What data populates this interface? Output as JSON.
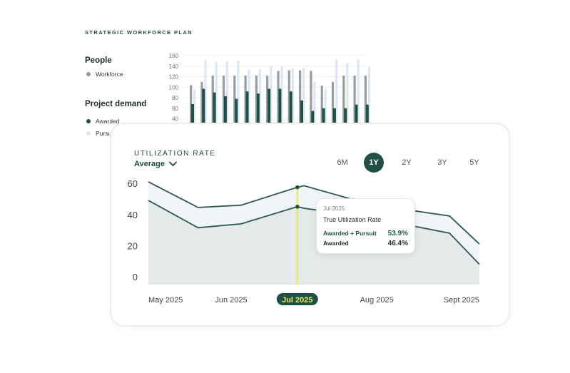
{
  "plan_label": "STRATEGIC WORKFORCE PLAN",
  "people": {
    "heading": "People",
    "legend": [
      {
        "label": "Workforce",
        "color": "#9a9c9b"
      }
    ]
  },
  "demand": {
    "heading": "Project demand",
    "legend": [
      {
        "label": "Awarded",
        "color": "#1f4f45"
      },
      {
        "label": "Pursuit",
        "color": "#e3e5e4"
      }
    ]
  },
  "colors": {
    "workforce": "#9a9c9b",
    "awarded": "#1f4f45",
    "pursuit": "#dde7f2",
    "accent": "#1f4f45",
    "highlight": "#e7ef55"
  },
  "utilization": {
    "title": "UTILIZATION RATE",
    "selector": "Average",
    "ranges": [
      "6M",
      "1Y",
      "2Y",
      "3Y",
      "5Y"
    ],
    "active_range": "1Y",
    "tooltip": {
      "date": "Jul 2025",
      "title": "True Utilization Rate",
      "rows": [
        {
          "label": "Awarded + Pursuit",
          "value": "53.9%"
        },
        {
          "label": "Awarded",
          "value": "46.4%"
        }
      ]
    }
  },
  "chart_data": [
    {
      "type": "bar",
      "title": "",
      "xlabel": "",
      "ylabel": "",
      "y_ticks": [
        40,
        60,
        80,
        100,
        120,
        140,
        160
      ],
      "ylim": [
        30,
        160
      ],
      "series": [
        {
          "name": "Workforce",
          "values": [
            104,
            110,
            122,
            122,
            122,
            122,
            122,
            122,
            131,
            132,
            132,
            131,
            103,
            110,
            122,
            122,
            122
          ]
        },
        {
          "name": "Pursuit",
          "values": [
            96,
            151,
            148,
            150,
            151,
            133,
            134,
            139,
            139,
            136,
            137,
            110,
            97,
            153,
            146,
            153,
            139
          ]
        },
        {
          "name": "Awarded",
          "values": [
            68,
            97,
            90,
            83,
            78,
            92,
            88,
            97,
            97,
            92,
            75,
            55,
            60,
            60,
            60,
            67,
            67
          ]
        }
      ]
    },
    {
      "type": "area",
      "title": "UTILIZATION RATE",
      "xlabel": "",
      "ylabel": "",
      "categories": [
        "May 2025",
        "Jun 2025",
        "Jul 2025",
        "Aug 2025",
        "Sept 2025"
      ],
      "highlight_category": "Jul 2025",
      "y_ticks": [
        0,
        20,
        40,
        60
      ],
      "ylim": [
        -5,
        66
      ],
      "series": [
        {
          "name": "Awarded + Pursuit",
          "x": [
            0,
            0.15,
            0.28,
            0.45,
            0.47,
            0.67,
            0.91,
            1.0
          ],
          "values": [
            61,
            44.5,
            46,
            57.5,
            58.5,
            46.5,
            39,
            21
          ]
        },
        {
          "name": "Awarded",
          "x": [
            0,
            0.15,
            0.28,
            0.45,
            0.47,
            0.67,
            0.91,
            1.0
          ],
          "values": [
            49,
            31.5,
            34,
            45,
            44,
            38,
            28,
            8
          ]
        }
      ],
      "marker_x": 0.45
    }
  ]
}
